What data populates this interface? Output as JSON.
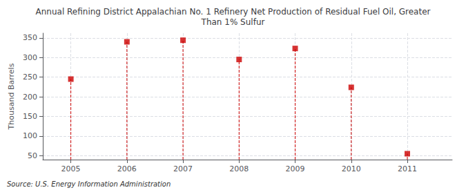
{
  "chart_data": {
    "type": "scatter",
    "title": "Annual Refining District Appalachian No. 1 Refinery Net Production of Residual Fuel Oil, Greater\nThan 1% Sulfur",
    "ylabel": "Thousand Barrels",
    "annotations": [
      "Source: U.S. Energy Information Administration"
    ],
    "x": [
      2005,
      2006,
      2007,
      2008,
      2009,
      2010,
      2011
    ],
    "values": [
      245,
      340,
      344,
      295,
      323,
      224,
      55
    ],
    "color": "#CC0000",
    "marker": "square",
    "line_style": "dashed",
    "xlim": [
      2004.5,
      2011.8
    ],
    "xticks": [
      2005,
      2006,
      2007,
      2008,
      2009,
      2010,
      2011
    ],
    "ylim": [
      40,
      362
    ],
    "yticks": [
      50,
      100,
      150,
      200,
      250,
      300,
      350
    ],
    "grid": true
  }
}
